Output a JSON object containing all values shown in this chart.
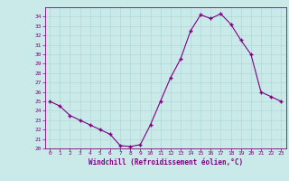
{
  "x": [
    0,
    1,
    2,
    3,
    4,
    5,
    6,
    7,
    8,
    9,
    10,
    11,
    12,
    13,
    14,
    15,
    16,
    17,
    18,
    19,
    20,
    21,
    22,
    23
  ],
  "y": [
    25.0,
    24.5,
    23.5,
    23.0,
    22.5,
    22.0,
    21.5,
    20.3,
    20.2,
    20.4,
    22.5,
    25.0,
    27.5,
    29.5,
    32.5,
    34.2,
    33.8,
    34.3,
    33.2,
    31.5,
    30.0,
    26.0,
    25.5,
    25.0
  ],
  "line_color": "#800080",
  "marker_color": "#800080",
  "bg_color": "#caeaea",
  "grid_color": "#b0d8d8",
  "xlabel": "Windchill (Refroidissement éolien,°C)",
  "xlabel_color": "#800080",
  "tick_color": "#800080",
  "ylim": [
    20,
    35
  ],
  "xlim_min": -0.5,
  "xlim_max": 23.5,
  "yticks": [
    20,
    21,
    22,
    23,
    24,
    25,
    26,
    27,
    28,
    29,
    30,
    31,
    32,
    33,
    34
  ],
  "xticks": [
    0,
    1,
    2,
    3,
    4,
    5,
    6,
    7,
    8,
    9,
    10,
    11,
    12,
    13,
    14,
    15,
    16,
    17,
    18,
    19,
    20,
    21,
    22,
    23
  ]
}
